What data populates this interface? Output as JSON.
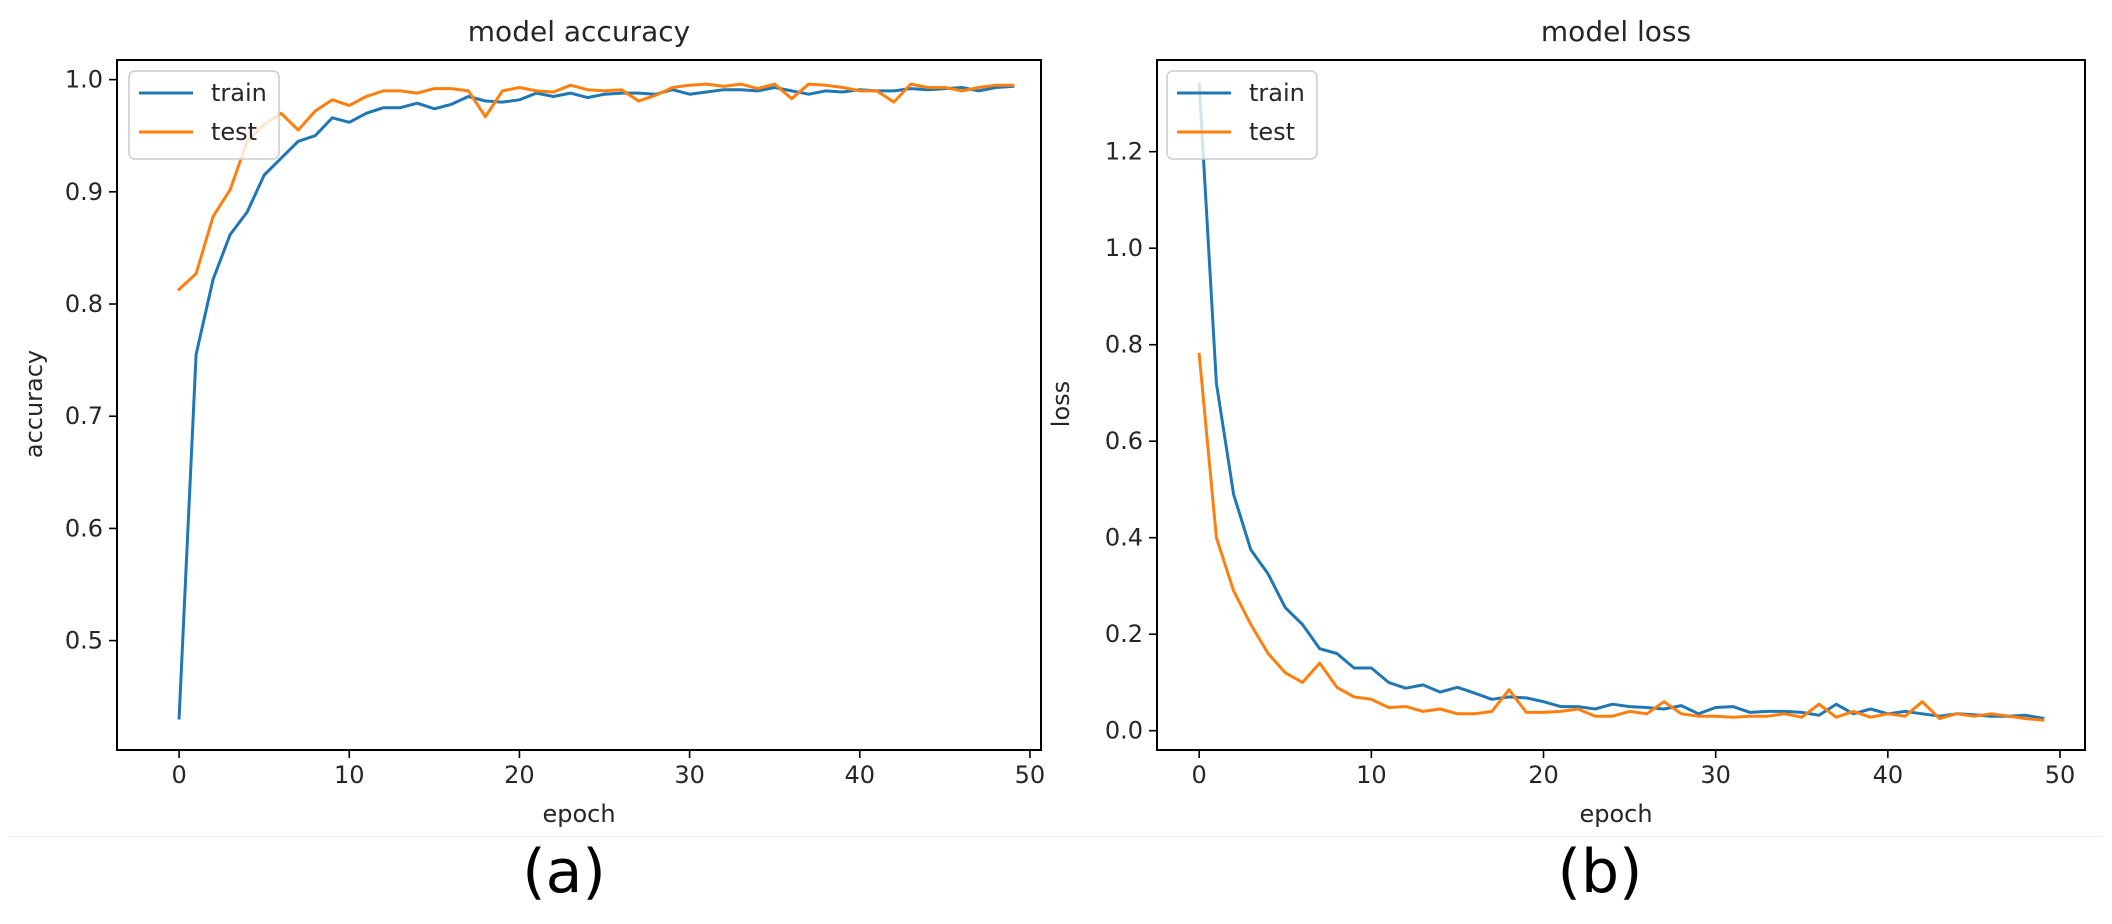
{
  "chart_data": [
    {
      "type": "line",
      "title": "model accuracy",
      "xlabel": "epoch",
      "ylabel": "accuracy",
      "xlim": [
        -3.65,
        50.65
      ],
      "ylim": [
        0.4025,
        1.0175
      ],
      "xticks": [
        0,
        10,
        20,
        30,
        40,
        50
      ],
      "yticks": [
        0.5,
        0.6,
        0.7,
        0.8,
        0.9,
        1.0
      ],
      "xtick_labels": [
        "0",
        "10",
        "20",
        "30",
        "40",
        "50"
      ],
      "ytick_labels": [
        "0.5",
        "0.6",
        "0.7",
        "0.8",
        "0.9",
        "1.0"
      ],
      "legend_position": "top-left",
      "grid": false,
      "x": [
        0,
        1,
        2,
        3,
        4,
        5,
        6,
        7,
        8,
        9,
        10,
        11,
        12,
        13,
        14,
        15,
        16,
        17,
        18,
        19,
        20,
        21,
        22,
        23,
        24,
        25,
        26,
        27,
        28,
        29,
        30,
        31,
        32,
        33,
        34,
        35,
        36,
        37,
        38,
        39,
        40,
        41,
        42,
        43,
        44,
        45,
        46,
        47,
        48,
        49
      ],
      "series": [
        {
          "name": "train",
          "color": "#1f77b4",
          "values": [
            0.431,
            0.755,
            0.822,
            0.862,
            0.882,
            0.915,
            0.93,
            0.945,
            0.95,
            0.966,
            0.962,
            0.97,
            0.975,
            0.975,
            0.979,
            0.974,
            0.978,
            0.985,
            0.981,
            0.98,
            0.982,
            0.988,
            0.985,
            0.988,
            0.984,
            0.987,
            0.988,
            0.988,
            0.987,
            0.991,
            0.987,
            0.989,
            0.991,
            0.991,
            0.99,
            0.993,
            0.99,
            0.987,
            0.99,
            0.989,
            0.991,
            0.99,
            0.99,
            0.992,
            0.991,
            0.992,
            0.993,
            0.99,
            0.993,
            0.994
          ]
        },
        {
          "name": "test",
          "color": "#ff7f0e",
          "values": [
            0.813,
            0.827,
            0.878,
            0.902,
            0.945,
            0.96,
            0.97,
            0.955,
            0.972,
            0.982,
            0.977,
            0.985,
            0.99,
            0.99,
            0.988,
            0.992,
            0.992,
            0.99,
            0.967,
            0.99,
            0.993,
            0.99,
            0.989,
            0.995,
            0.991,
            0.99,
            0.991,
            0.981,
            0.986,
            0.993,
            0.995,
            0.996,
            0.994,
            0.996,
            0.992,
            0.996,
            0.983,
            0.996,
            0.995,
            0.993,
            0.99,
            0.99,
            0.98,
            0.996,
            0.993,
            0.993,
            0.99,
            0.993,
            0.995,
            0.995
          ]
        }
      ]
    },
    {
      "type": "line",
      "title": "model loss",
      "xlabel": "epoch",
      "ylabel": "loss",
      "xlim": [
        -2.45,
        51.45
      ],
      "ylim": [
        -0.04,
        1.39
      ],
      "xticks": [
        0,
        10,
        20,
        30,
        40,
        50
      ],
      "yticks": [
        0.0,
        0.2,
        0.4,
        0.6,
        0.8,
        1.0,
        1.2
      ],
      "xtick_labels": [
        "0",
        "10",
        "20",
        "30",
        "40",
        "50"
      ],
      "ytick_labels": [
        "0.0",
        "0.2",
        "0.4",
        "0.6",
        "0.8",
        "1.0",
        "1.2"
      ],
      "legend_position": "top-left",
      "grid": false,
      "x": [
        0,
        1,
        2,
        3,
        4,
        5,
        6,
        7,
        8,
        9,
        10,
        11,
        12,
        13,
        14,
        15,
        16,
        17,
        18,
        19,
        20,
        21,
        22,
        23,
        24,
        25,
        26,
        27,
        28,
        29,
        30,
        31,
        32,
        33,
        34,
        35,
        36,
        37,
        38,
        39,
        40,
        41,
        42,
        43,
        44,
        45,
        46,
        47,
        48,
        49
      ],
      "series": [
        {
          "name": "train",
          "color": "#1f77b4",
          "values": [
            1.34,
            0.72,
            0.49,
            0.375,
            0.325,
            0.255,
            0.22,
            0.17,
            0.16,
            0.13,
            0.13,
            0.1,
            0.088,
            0.095,
            0.08,
            0.09,
            0.078,
            0.065,
            0.07,
            0.068,
            0.06,
            0.05,
            0.05,
            0.045,
            0.055,
            0.05,
            0.048,
            0.045,
            0.052,
            0.035,
            0.048,
            0.05,
            0.038,
            0.04,
            0.04,
            0.038,
            0.032,
            0.055,
            0.035,
            0.045,
            0.035,
            0.04,
            0.035,
            0.03,
            0.035,
            0.033,
            0.03,
            0.03,
            0.032,
            0.026
          ]
        },
        {
          "name": "test",
          "color": "#ff7f0e",
          "values": [
            0.78,
            0.4,
            0.29,
            0.22,
            0.16,
            0.12,
            0.1,
            0.14,
            0.09,
            0.07,
            0.065,
            0.048,
            0.05,
            0.04,
            0.045,
            0.035,
            0.035,
            0.04,
            0.085,
            0.038,
            0.038,
            0.04,
            0.045,
            0.03,
            0.03,
            0.04,
            0.035,
            0.06,
            0.035,
            0.03,
            0.03,
            0.028,
            0.03,
            0.03,
            0.035,
            0.028,
            0.055,
            0.028,
            0.04,
            0.028,
            0.035,
            0.03,
            0.06,
            0.025,
            0.035,
            0.03,
            0.035,
            0.03,
            0.025,
            0.022
          ]
        }
      ]
    }
  ],
  "panel_labels": [
    "(a)",
    "(b)"
  ]
}
